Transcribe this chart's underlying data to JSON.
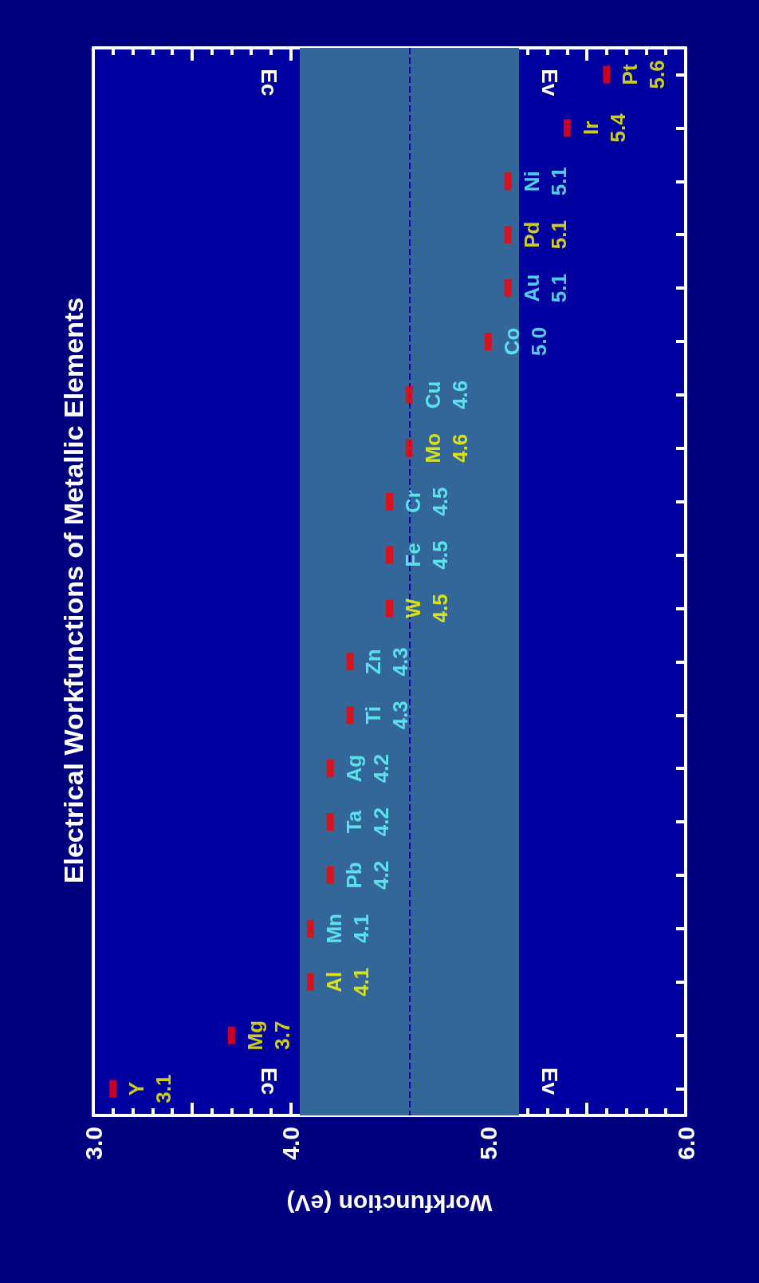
{
  "chart_data": {
    "type": "scatter",
    "title": "Electrical Workfunctions of Metallic Elements",
    "xlabel": "Workfunction (eV)",
    "orientation": "horizontal",
    "categories": [
      "Pt",
      "Ir",
      "Ni",
      "Pd",
      "Au",
      "Co",
      "Cu",
      "Mo",
      "Cr",
      "Fe",
      "W",
      "Zn",
      "Ti",
      "Ag",
      "Ta",
      "Pb",
      "Mn",
      "Al",
      "Mg",
      "Y"
    ],
    "series": [
      {
        "color": "#ff0000",
        "values": [
          5.6,
          5.4,
          null,
          5.1,
          null,
          null,
          null,
          4.6,
          null,
          null,
          4.5,
          null,
          null,
          null,
          null,
          null,
          null,
          4.1,
          3.7,
          3.1
        ],
        "value_labels": [
          "5.6",
          "5.4",
          null,
          "5.1",
          null,
          null,
          null,
          "4.6",
          null,
          null,
          "4.5",
          null,
          null,
          null,
          null,
          null,
          null,
          "4.1",
          "3.7",
          "3.1"
        ]
      },
      {
        "color": "#ff0000",
        "values": [
          null,
          null,
          5.1,
          null,
          5.1,
          5.0,
          4.6,
          null,
          4.5,
          4.5,
          null,
          4.3,
          4.3,
          4.2,
          4.2,
          4.2,
          4.1,
          null,
          null,
          null
        ],
        "value_labels": [
          null,
          null,
          "5.1",
          null,
          "5.1",
          "5.0",
          "4.6",
          null,
          "4.5",
          "4.5",
          null,
          "4.3",
          "4.3",
          "4.2",
          "4.2",
          "4.2",
          "4.1",
          null,
          null,
          null
        ]
      }
    ],
    "xlim": [
      3.0,
      6.0
    ],
    "xticks": [
      {
        "value": 3.0,
        "label": "3.0"
      },
      {
        "value": 3.5,
        "label": null
      },
      {
        "value": 4.0,
        "label": "4.0"
      },
      {
        "value": 4.5,
        "label": null
      },
      {
        "value": 5.0,
        "label": "5.0"
      },
      {
        "value": 5.5,
        "label": null
      },
      {
        "value": 6.0,
        "label": "6.0"
      }
    ],
    "bands": [
      {
        "axis": "x",
        "from": 4.05,
        "to": 5.15,
        "color": "#336699"
      }
    ],
    "ref_lines": [
      {
        "axis": "x",
        "value": 4.05,
        "label": "Ec",
        "color": "#336699",
        "line_style": "solid"
      },
      {
        "axis": "x",
        "value": 5.15,
        "label": "Ev",
        "color": "#336699",
        "line_style": "solid"
      },
      {
        "axis": "x",
        "value": 4.6,
        "color": "#0000aa",
        "line_style": "dashed"
      }
    ],
    "marker": "square",
    "tick_labels": "x"
  }
}
